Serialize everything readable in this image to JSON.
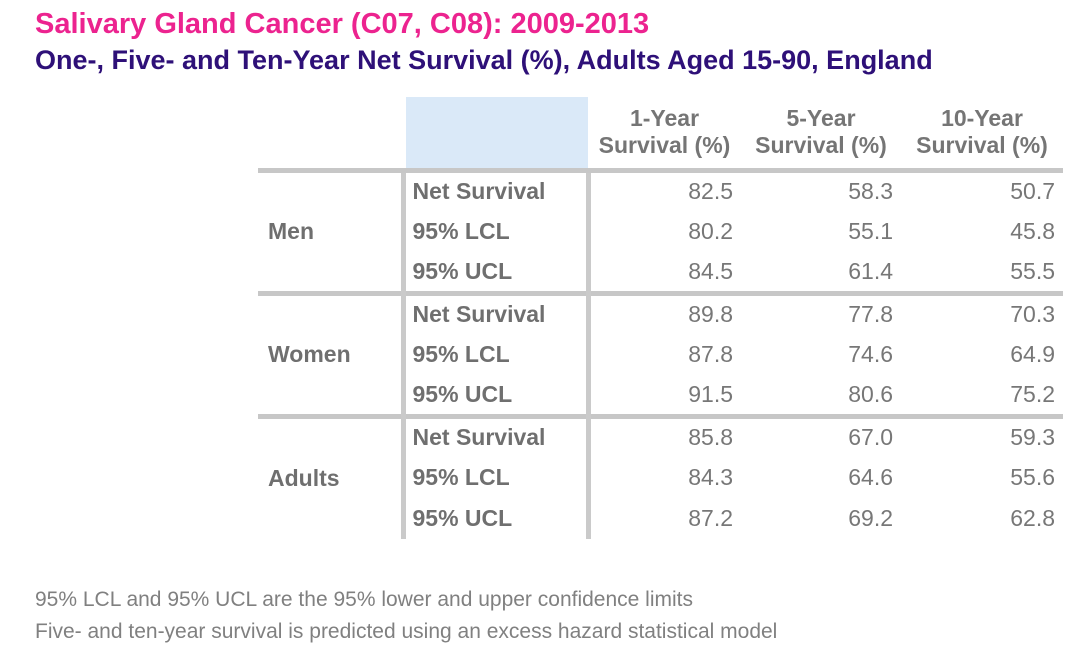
{
  "header": {
    "title": "Salivary Gland Cancer (C07, C08): 2009-2013",
    "subtitle": "One-, Five- and Ten-Year Net Survival (%), Adults Aged 15-90, England"
  },
  "colors": {
    "title_pink": "#EC238F",
    "subtitle_navy": "#2E1078",
    "table_label_gray": "#6F6F6F",
    "number_gray": "#777777",
    "grid_line_gray": "#C7C7C7",
    "header_highlight_blue": "#DAE9F8",
    "footnote_gray": "#808080"
  },
  "table": {
    "column_headers": [
      {
        "line1": "1-Year",
        "line2": "Survival (%)"
      },
      {
        "line1": "5-Year",
        "line2": "Survival (%)"
      },
      {
        "line1": "10-Year",
        "line2": "Survival (%)"
      }
    ],
    "groups": [
      {
        "label": "Men",
        "rows": [
          {
            "label": "Net Survival",
            "values": [
              "82.5",
              "58.3",
              "50.7"
            ]
          },
          {
            "label": "95% LCL",
            "values": [
              "80.2",
              "55.1",
              "45.8"
            ]
          },
          {
            "label": "95% UCL",
            "values": [
              "84.5",
              "61.4",
              "55.5"
            ]
          }
        ]
      },
      {
        "label": "Women",
        "rows": [
          {
            "label": "Net Survival",
            "values": [
              "89.8",
              "77.8",
              "70.3"
            ]
          },
          {
            "label": "95% LCL",
            "values": [
              "87.8",
              "74.6",
              "64.9"
            ]
          },
          {
            "label": "95% UCL",
            "values": [
              "91.5",
              "80.6",
              "75.2"
            ]
          }
        ]
      },
      {
        "label": "Adults",
        "rows": [
          {
            "label": "Net Survival",
            "values": [
              "85.8",
              "67.0",
              "59.3"
            ]
          },
          {
            "label": "95% LCL",
            "values": [
              "84.3",
              "64.6",
              "55.6"
            ]
          },
          {
            "label": "95% UCL",
            "values": [
              "87.2",
              "69.2",
              "62.8"
            ]
          }
        ]
      }
    ]
  },
  "footnotes": [
    "95% LCL and 95% UCL are the 95% lower and upper confidence limits",
    "Five- and ten-year survival is predicted using an excess hazard statistical model"
  ],
  "chart_data": {
    "type": "table",
    "title": "Salivary Gland Cancer (C07, C08): 2009-2013",
    "subtitle": "One-, Five- and Ten-Year Net Survival (%), Adults Aged 15-90, England",
    "columns": [
      "1-Year Survival (%)",
      "5-Year Survival (%)",
      "10-Year Survival (%)"
    ],
    "row_metrics": [
      "Net Survival",
      "95% LCL",
      "95% UCL"
    ],
    "groups": [
      {
        "group": "Men",
        "net_survival": [
          82.5,
          58.3,
          50.7
        ],
        "lcl_95": [
          80.2,
          55.1,
          45.8
        ],
        "ucl_95": [
          84.5,
          61.4,
          55.5
        ]
      },
      {
        "group": "Women",
        "net_survival": [
          89.8,
          77.8,
          70.3
        ],
        "lcl_95": [
          87.8,
          74.6,
          64.9
        ],
        "ucl_95": [
          91.5,
          80.6,
          75.2
        ]
      },
      {
        "group": "Adults",
        "net_survival": [
          85.8,
          67.0,
          59.3
        ],
        "lcl_95": [
          84.3,
          64.6,
          55.6
        ],
        "ucl_95": [
          87.2,
          69.2,
          62.8
        ]
      }
    ],
    "notes": [
      "95% LCL and 95% UCL are the 95% lower and upper confidence limits",
      "Five- and ten-year survival is predicted using an excess hazard statistical model"
    ]
  }
}
